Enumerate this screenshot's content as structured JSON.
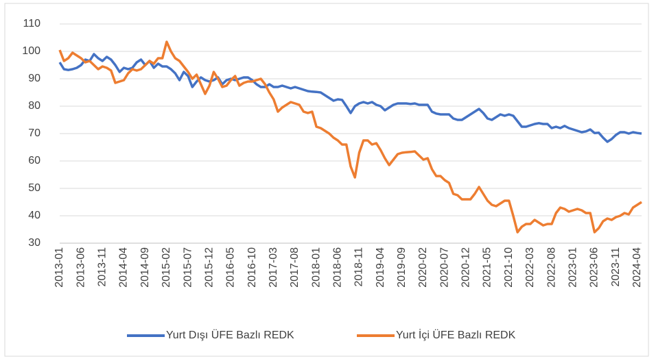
{
  "chart_data": {
    "type": "line",
    "categories": [
      "2013-01",
      null,
      null,
      null,
      null,
      "2013-06",
      null,
      null,
      null,
      null,
      "2013-11",
      null,
      null,
      null,
      null,
      "2014-04",
      null,
      null,
      null,
      null,
      "2014-09",
      null,
      null,
      null,
      null,
      "2015-02",
      null,
      null,
      null,
      null,
      "2015-07",
      null,
      null,
      null,
      null,
      "2015-12",
      null,
      null,
      null,
      null,
      "2016-05",
      null,
      null,
      null,
      null,
      "2016-10",
      null,
      null,
      null,
      null,
      "2017-03",
      null,
      null,
      null,
      null,
      "2017-08",
      null,
      null,
      null,
      null,
      "2018-01",
      null,
      null,
      null,
      null,
      "2018-06",
      null,
      null,
      null,
      null,
      "2018-11",
      null,
      null,
      null,
      null,
      "2019-04",
      null,
      null,
      null,
      null,
      "2019-09",
      null,
      null,
      null,
      null,
      "2020-02",
      null,
      null,
      null,
      null,
      "2020-07",
      null,
      null,
      null,
      null,
      "2020-12",
      null,
      null,
      null,
      null,
      "2021-05",
      null,
      null,
      null,
      null,
      "2021-10",
      null,
      null,
      null,
      null,
      "2022-03",
      null,
      null,
      null,
      null,
      "2022-08",
      null,
      null,
      null,
      null,
      "2023-01",
      null,
      null,
      null,
      null,
      "2023-06",
      null,
      null,
      null,
      null,
      "2023-11",
      null,
      null,
      null,
      null,
      "2024-04",
      null
    ],
    "series": [
      {
        "name": "Yurt Dışı ÜFE Bazlı REDK",
        "color": "#4472c4",
        "values": [
          96,
          93.5,
          93.2,
          93.5,
          94,
          95,
          97,
          96.5,
          99,
          97.5,
          96.5,
          98,
          97,
          95,
          92.5,
          94,
          93.5,
          94,
          96,
          97,
          95,
          96.5,
          94,
          95.5,
          94.5,
          94.5,
          93.5,
          92,
          89.5,
          92.5,
          91,
          87,
          89,
          90.5,
          89.5,
          89,
          89.5,
          90.5,
          88,
          89.5,
          90,
          89.5,
          90,
          90.5,
          90.5,
          89.5,
          88,
          87,
          87,
          88,
          87,
          87,
          87.5,
          87,
          86.5,
          87,
          86.5,
          86,
          85.5,
          85.3,
          85.2,
          85,
          84,
          83,
          82,
          82.5,
          82.3,
          80,
          77.5,
          80,
          81,
          81.5,
          81,
          81.5,
          80.5,
          80,
          78.5,
          79.5,
          80.5,
          81,
          81,
          81,
          80.8,
          81,
          80.5,
          80.5,
          80.5,
          78,
          77.3,
          77,
          77,
          77,
          75.5,
          75,
          75,
          76,
          77,
          78,
          79,
          77.5,
          75.5,
          75,
          76,
          77,
          76.5,
          77,
          76.5,
          74.5,
          72.5,
          72.5,
          73,
          73.5,
          73.8,
          73.5,
          73.5,
          72,
          72.5,
          72,
          72.8,
          72,
          71.5,
          71,
          70.5,
          70.8,
          71.5,
          70.2,
          70.3,
          68.5,
          67,
          68,
          69.5,
          70.5,
          70.5,
          70,
          70.5,
          70.2,
          70
        ]
      },
      {
        "name": "Yurt İçi ÜFE Bazlı REDK",
        "color": "#ed7d31",
        "values": [
          100.5,
          96.5,
          97.5,
          99.5,
          98.5,
          97.5,
          96,
          96.5,
          95,
          93.5,
          94.5,
          94,
          93,
          88.5,
          89,
          89.5,
          92,
          93.5,
          93,
          93.5,
          95,
          96.5,
          95.5,
          97.5,
          97.5,
          103.5,
          100,
          97.5,
          96.5,
          94.5,
          92.5,
          90,
          91.5,
          88,
          84.5,
          87.5,
          92.5,
          90,
          87,
          87.5,
          89.5,
          91,
          87.5,
          88.5,
          89,
          89,
          89.5,
          90,
          88,
          85,
          82.5,
          78,
          79.5,
          80.5,
          81.5,
          81,
          80.5,
          78,
          77.5,
          78,
          72.5,
          72,
          71,
          70,
          68.5,
          67.5,
          66,
          66,
          58,
          54,
          63,
          67.5,
          67.5,
          66,
          66.5,
          64,
          61,
          58.5,
          60.5,
          62.5,
          63,
          63.2,
          63.3,
          63.5,
          62,
          60.5,
          61,
          57,
          54.5,
          54.5,
          53,
          52,
          48,
          47.5,
          46,
          46,
          46,
          48,
          50.5,
          48,
          45.5,
          44,
          43.5,
          44.5,
          45.5,
          45.5,
          40,
          34,
          36,
          37,
          37,
          38.5,
          37.5,
          36.5,
          37,
          37,
          41,
          43,
          42.5,
          41.5,
          42,
          42.5,
          42,
          41,
          41,
          34,
          35.5,
          38,
          39,
          38.5,
          39.5,
          40,
          41,
          40.5,
          43,
          44,
          45
        ]
      }
    ],
    "ylim": [
      30,
      110
    ],
    "yticks": [
      30,
      40,
      50,
      60,
      70,
      80,
      90,
      100,
      110
    ],
    "grid": true
  }
}
